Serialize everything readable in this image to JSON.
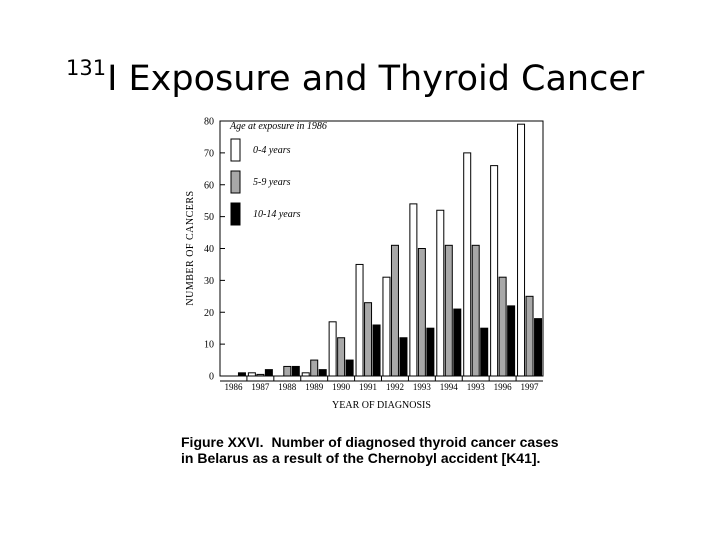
{
  "slide": {
    "title_superscript": "131",
    "title_text": "I Exposure and Thyroid Cancer"
  },
  "chart_data": {
    "type": "bar",
    "ylabel": "NUMBER OF CANCERS",
    "xlabel": "YEAR OF DIAGNOSIS",
    "ylim": [
      0,
      80
    ],
    "yticks": [
      0,
      10,
      20,
      30,
      40,
      50,
      60,
      70,
      80
    ],
    "categories": [
      "1986",
      "1987",
      "1988",
      "1989",
      "1990",
      "1991",
      "1992",
      "1993",
      "1994",
      "1993",
      "1996",
      "1997"
    ],
    "legend_title": "Age at exposure in 1986",
    "legend_position": "top-left",
    "series": [
      {
        "name": "0-4 years",
        "color": "#ffffff",
        "values": [
          0,
          1,
          0,
          1,
          17,
          35,
          31,
          54,
          52,
          70,
          66,
          79
        ]
      },
      {
        "name": "5-9 years",
        "color": "#a8a8a8",
        "values": [
          0,
          0.5,
          3,
          5,
          12,
          23,
          41,
          40,
          41,
          41,
          31,
          25
        ]
      },
      {
        "name": "10-14 years",
        "color": "#000000",
        "values": [
          1,
          2,
          3,
          2,
          5,
          16,
          12,
          15,
          21,
          15,
          22,
          18
        ]
      }
    ]
  },
  "caption": {
    "label": "Figure XXVI.",
    "text": "Number of diagnosed thyroid cancer cases in Belarus as a result of the Chernobyl accident [K41]."
  }
}
